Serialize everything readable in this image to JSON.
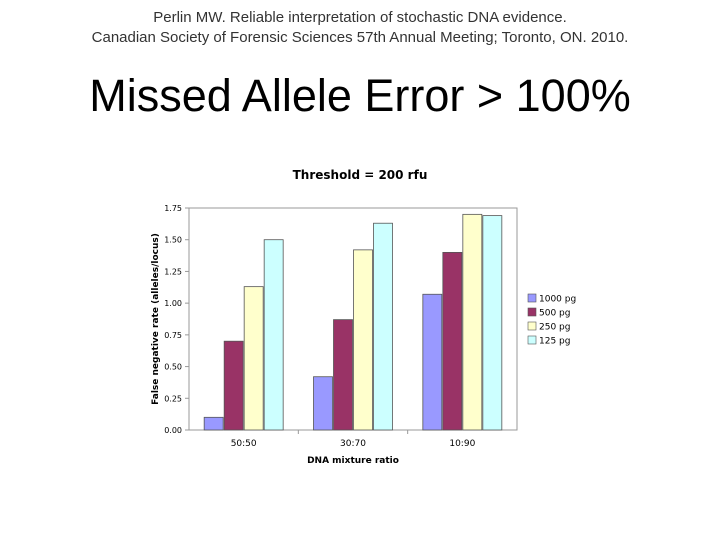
{
  "citation": {
    "line1": "Perlin MW. Reliable interpretation of stochastic DNA evidence.",
    "line2": "Canadian Society of Forensic Sciences 57th Annual Meeting; Toronto, ON. 2010."
  },
  "slide_title": "Missed Allele Error > 100%",
  "chart_data": {
    "type": "bar",
    "title": "Threshold = 200 rfu",
    "xlabel": "DNA mixture ratio",
    "ylabel": "False negative rate (alleles/locus)",
    "categories": [
      "50:50",
      "30:70",
      "10:90"
    ],
    "ylim": [
      0,
      1.75
    ],
    "yticks": [
      "0.00",
      "0.25",
      "0.50",
      "0.75",
      "1.00",
      "1.25",
      "1.50",
      "1.75"
    ],
    "grid": false,
    "legend_position": "right",
    "series": [
      {
        "name": "1000 pg",
        "color": "#9999ff",
        "values": [
          0.1,
          0.42,
          1.07
        ]
      },
      {
        "name": "500 pg",
        "color": "#993366",
        "values": [
          0.7,
          0.87,
          1.4
        ]
      },
      {
        "name": "250 pg",
        "color": "#ffffcc",
        "values": [
          1.13,
          1.42,
          1.7
        ]
      },
      {
        "name": "125 pg",
        "color": "#ccffff",
        "values": [
          1.5,
          1.63,
          1.69
        ]
      }
    ]
  }
}
